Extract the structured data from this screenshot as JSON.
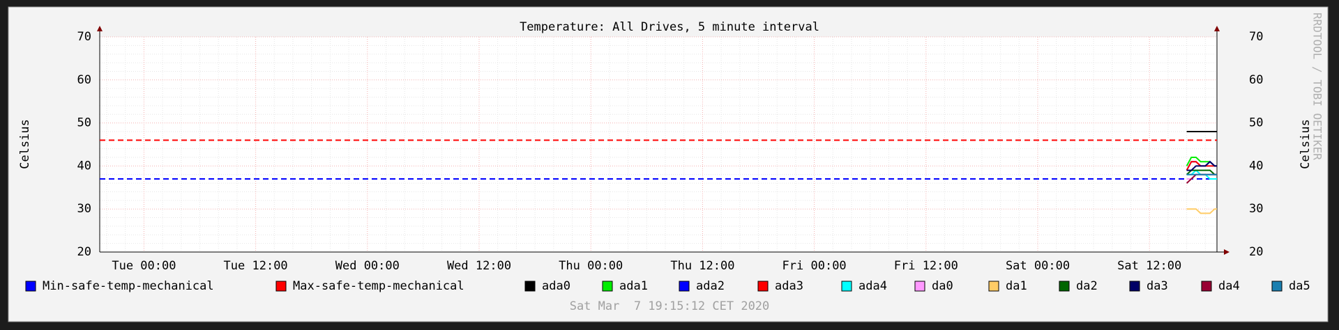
{
  "chart_data": {
    "type": "line",
    "title": "Temperature: All Drives, 5 minute interval",
    "ylabel": "Celsius",
    "y2label": "Celsius",
    "watermark": "RRDTOOL / TOBI OETIKER",
    "timestamp": "Sat Mar  7 19:15:12 CET 2020",
    "grid": true,
    "xlim": [
      -4.75,
      115.25
    ],
    "xticks": [
      {
        "value": 0,
        "label": "Tue 00:00"
      },
      {
        "value": 12,
        "label": "Tue 12:00"
      },
      {
        "value": 24,
        "label": "Wed 00:00"
      },
      {
        "value": 36,
        "label": "Wed 12:00"
      },
      {
        "value": 48,
        "label": "Thu 00:00"
      },
      {
        "value": 60,
        "label": "Thu 12:00"
      },
      {
        "value": 72,
        "label": "Fri 00:00"
      },
      {
        "value": 84,
        "label": "Fri 12:00"
      },
      {
        "value": 96,
        "label": "Sat 00:00"
      },
      {
        "value": 108,
        "label": "Sat 12:00"
      }
    ],
    "xminor": [
      -4,
      -2,
      2,
      4,
      6,
      8,
      10,
      14,
      16,
      18,
      20,
      22,
      26,
      28,
      30,
      32,
      34,
      38,
      40,
      42,
      44,
      46,
      50,
      52,
      54,
      56,
      58,
      62,
      64,
      66,
      68,
      70,
      74,
      76,
      78,
      80,
      82,
      86,
      88,
      90,
      92,
      94,
      98,
      100,
      102,
      104,
      106,
      110,
      112,
      114
    ],
    "ylim": [
      20,
      70
    ],
    "yticks": [
      20,
      30,
      40,
      50,
      60,
      70
    ],
    "yminor": [
      22,
      24,
      26,
      28,
      32,
      34,
      36,
      38,
      42,
      44,
      46,
      48,
      52,
      54,
      56,
      58,
      62,
      64,
      66,
      68
    ],
    "x": [
      -4.75,
      112,
      112.5,
      113,
      113.5,
      114,
      114.5,
      115,
      115.25
    ],
    "series": [
      {
        "name": "Min-safe-temp-mechanical",
        "color": "#0000ff",
        "dashed": true,
        "values": [
          37,
          37,
          37,
          37,
          37,
          37,
          37,
          37,
          37
        ]
      },
      {
        "name": "Max-safe-temp-mechanical",
        "color": "#ff0000",
        "dashed": true,
        "values": [
          46,
          46,
          46,
          46,
          46,
          46,
          46,
          46,
          46
        ]
      },
      {
        "name": "ada0",
        "color": "#000000",
        "values": [
          null,
          48,
          48,
          48,
          48,
          48,
          48,
          48,
          48
        ]
      },
      {
        "name": "ada1",
        "color": "#00ee00",
        "values": [
          null,
          40,
          42,
          42,
          41,
          41,
          41,
          40,
          40
        ]
      },
      {
        "name": "ada2",
        "color": "#0000ff",
        "values": [
          null,
          39,
          41,
          41,
          40,
          40,
          41,
          40,
          40
        ]
      },
      {
        "name": "ada3",
        "color": "#ff0000",
        "values": [
          null,
          39,
          41,
          41,
          40,
          40,
          40,
          40,
          40
        ]
      },
      {
        "name": "ada4",
        "color": "#00ffff",
        "values": [
          null,
          38,
          38,
          39,
          38,
          38,
          37,
          37,
          37
        ]
      },
      {
        "name": "da0",
        "color": "#ff99ff",
        "values": [
          null,
          37,
          37,
          38,
          38,
          38,
          38,
          38,
          38
        ]
      },
      {
        "name": "da1",
        "color": "#ffcc66",
        "values": [
          null,
          30,
          30,
          30,
          29,
          29,
          29,
          30,
          30
        ]
      },
      {
        "name": "da2",
        "color": "#006600",
        "values": [
          null,
          38,
          39,
          39,
          39,
          39,
          39,
          38,
          38
        ]
      },
      {
        "name": "da3",
        "color": "#000066",
        "values": [
          null,
          39,
          39,
          40,
          40,
          40,
          41,
          40,
          40
        ]
      },
      {
        "name": "da4",
        "color": "#990033",
        "values": [
          null,
          36,
          37,
          38,
          38,
          38,
          38,
          38,
          38
        ]
      },
      {
        "name": "da5",
        "color": "#1a7fb0",
        "values": [
          null,
          38,
          38,
          38,
          38,
          38,
          38,
          38,
          38
        ]
      }
    ]
  }
}
